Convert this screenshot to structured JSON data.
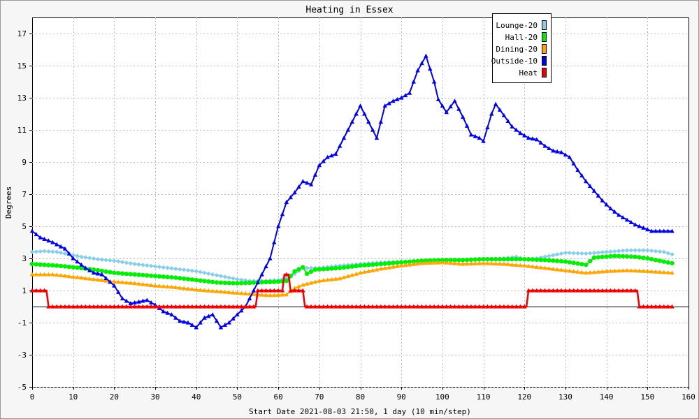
{
  "chart_data": {
    "type": "line",
    "title": "Heating in Essex",
    "xlabel": "Start Date 2021-08-03 21:50, 1 day (10 min/step)",
    "ylabel": "Degrees",
    "xlim": [
      0,
      160
    ],
    "ylim": [
      -5,
      18
    ],
    "x_ticks": [
      0,
      10,
      20,
      30,
      40,
      50,
      60,
      70,
      80,
      90,
      100,
      110,
      120,
      130,
      140,
      150,
      160
    ],
    "y_ticks": [
      -5,
      -3,
      -1,
      1,
      3,
      5,
      7,
      9,
      11,
      13,
      15,
      17
    ],
    "grid": true,
    "legend_position": "top-right",
    "series": [
      {
        "name": "Lounge-20",
        "color": "#87ceeb",
        "marker": "diamond",
        "points": [
          [
            0,
            3.4
          ],
          [
            3,
            3.45
          ],
          [
            6,
            3.4
          ],
          [
            9,
            3.25
          ],
          [
            12,
            3.1
          ],
          [
            16,
            2.95
          ],
          [
            20,
            2.85
          ],
          [
            25,
            2.65
          ],
          [
            30,
            2.5
          ],
          [
            35,
            2.35
          ],
          [
            40,
            2.2
          ],
          [
            45,
            1.95
          ],
          [
            50,
            1.7
          ],
          [
            53,
            1.6
          ],
          [
            56,
            1.6
          ],
          [
            60,
            1.65
          ],
          [
            63,
            1.85
          ],
          [
            66,
            2.4
          ],
          [
            70,
            2.4
          ],
          [
            75,
            2.55
          ],
          [
            80,
            2.65
          ],
          [
            85,
            2.75
          ],
          [
            90,
            2.8
          ],
          [
            95,
            2.85
          ],
          [
            100,
            2.85
          ],
          [
            105,
            2.9
          ],
          [
            110,
            2.95
          ],
          [
            115,
            3.0
          ],
          [
            118,
            3.1
          ],
          [
            120,
            2.95
          ],
          [
            123,
            3.0
          ],
          [
            126,
            3.15
          ],
          [
            130,
            3.35
          ],
          [
            135,
            3.3
          ],
          [
            140,
            3.4
          ],
          [
            145,
            3.5
          ],
          [
            150,
            3.5
          ],
          [
            154,
            3.4
          ],
          [
            156,
            3.25
          ]
        ]
      },
      {
        "name": "Hall-20",
        "color": "#00ee00",
        "marker": "circle",
        "points": [
          [
            0,
            2.65
          ],
          [
            3,
            2.6
          ],
          [
            6,
            2.55
          ],
          [
            10,
            2.45
          ],
          [
            15,
            2.3
          ],
          [
            20,
            2.1
          ],
          [
            25,
            2.0
          ],
          [
            30,
            1.9
          ],
          [
            35,
            1.8
          ],
          [
            40,
            1.65
          ],
          [
            45,
            1.5
          ],
          [
            50,
            1.45
          ],
          [
            55,
            1.5
          ],
          [
            60,
            1.55
          ],
          [
            62,
            1.6
          ],
          [
            64,
            2.2
          ],
          [
            66,
            2.45
          ],
          [
            67,
            2.05
          ],
          [
            69,
            2.3
          ],
          [
            75,
            2.4
          ],
          [
            80,
            2.55
          ],
          [
            85,
            2.65
          ],
          [
            90,
            2.75
          ],
          [
            95,
            2.85
          ],
          [
            100,
            2.9
          ],
          [
            105,
            2.9
          ],
          [
            110,
            2.95
          ],
          [
            115,
            2.95
          ],
          [
            120,
            2.95
          ],
          [
            125,
            2.9
          ],
          [
            130,
            2.8
          ],
          [
            135,
            2.6
          ],
          [
            137,
            3.05
          ],
          [
            142,
            3.15
          ],
          [
            147,
            3.1
          ],
          [
            150,
            3.0
          ],
          [
            153,
            2.85
          ],
          [
            156,
            2.7
          ]
        ]
      },
      {
        "name": "Dining-20",
        "color": "#ffa500",
        "marker": "triangle",
        "points": [
          [
            0,
            2.0
          ],
          [
            5,
            2.0
          ],
          [
            10,
            1.85
          ],
          [
            15,
            1.7
          ],
          [
            20,
            1.55
          ],
          [
            25,
            1.45
          ],
          [
            30,
            1.3
          ],
          [
            35,
            1.2
          ],
          [
            40,
            1.05
          ],
          [
            45,
            0.95
          ],
          [
            50,
            0.85
          ],
          [
            55,
            0.75
          ],
          [
            58,
            0.7
          ],
          [
            62,
            0.75
          ],
          [
            64,
            1.15
          ],
          [
            66,
            1.35
          ],
          [
            70,
            1.6
          ],
          [
            75,
            1.75
          ],
          [
            80,
            2.1
          ],
          [
            85,
            2.35
          ],
          [
            90,
            2.55
          ],
          [
            95,
            2.7
          ],
          [
            100,
            2.75
          ],
          [
            105,
            2.65
          ],
          [
            110,
            2.7
          ],
          [
            115,
            2.65
          ],
          [
            120,
            2.55
          ],
          [
            125,
            2.4
          ],
          [
            130,
            2.25
          ],
          [
            135,
            2.1
          ],
          [
            140,
            2.2
          ],
          [
            145,
            2.25
          ],
          [
            150,
            2.2
          ],
          [
            156,
            2.1
          ]
        ]
      },
      {
        "name": "Outside-10",
        "color": "#0000ee",
        "marker": "triangle",
        "points": [
          [
            0,
            4.7
          ],
          [
            2,
            4.3
          ],
          [
            5,
            4.0
          ],
          [
            8,
            3.6
          ],
          [
            10,
            3.0
          ],
          [
            13,
            2.4
          ],
          [
            15,
            2.1
          ],
          [
            17,
            2.0
          ],
          [
            20,
            1.3
          ],
          [
            22,
            0.5
          ],
          [
            24,
            0.2
          ],
          [
            26,
            0.3
          ],
          [
            28,
            0.4
          ],
          [
            30,
            0.1
          ],
          [
            32,
            -0.3
          ],
          [
            34,
            -0.5
          ],
          [
            36,
            -0.9
          ],
          [
            38,
            -1.0
          ],
          [
            40,
            -1.3
          ],
          [
            42,
            -0.7
          ],
          [
            44,
            -0.5
          ],
          [
            46,
            -1.3
          ],
          [
            48,
            -1.0
          ],
          [
            50,
            -0.5
          ],
          [
            52,
            0.0
          ],
          [
            54,
            1.0
          ],
          [
            56,
            2.0
          ],
          [
            58,
            3.0
          ],
          [
            60,
            5.0
          ],
          [
            62,
            6.5
          ],
          [
            64,
            7.1
          ],
          [
            66,
            7.8
          ],
          [
            68,
            7.6
          ],
          [
            70,
            8.8
          ],
          [
            72,
            9.3
          ],
          [
            74,
            9.5
          ],
          [
            76,
            10.5
          ],
          [
            78,
            11.5
          ],
          [
            80,
            12.5
          ],
          [
            82,
            11.5
          ],
          [
            84,
            10.5
          ],
          [
            86,
            12.5
          ],
          [
            88,
            12.8
          ],
          [
            90,
            13.0
          ],
          [
            92,
            13.3
          ],
          [
            94,
            14.7
          ],
          [
            96,
            15.6
          ],
          [
            98,
            14.0
          ],
          [
            99,
            12.9
          ],
          [
            101,
            12.1
          ],
          [
            103,
            12.8
          ],
          [
            105,
            11.8
          ],
          [
            107,
            10.7
          ],
          [
            109,
            10.5
          ],
          [
            110,
            10.3
          ],
          [
            112,
            12.0
          ],
          [
            113,
            12.6
          ],
          [
            115,
            11.9
          ],
          [
            117,
            11.2
          ],
          [
            119,
            10.8
          ],
          [
            121,
            10.5
          ],
          [
            123,
            10.4
          ],
          [
            125,
            10.0
          ],
          [
            127,
            9.7
          ],
          [
            129,
            9.6
          ],
          [
            131,
            9.3
          ],
          [
            133,
            8.5
          ],
          [
            135,
            7.8
          ],
          [
            137,
            7.2
          ],
          [
            139,
            6.6
          ],
          [
            141,
            6.1
          ],
          [
            143,
            5.7
          ],
          [
            145,
            5.4
          ],
          [
            147,
            5.1
          ],
          [
            149,
            4.9
          ],
          [
            151,
            4.7
          ],
          [
            156,
            4.7
          ]
        ]
      },
      {
        "name": "Heat",
        "color": "#ee0000",
        "marker": "triangle",
        "points": [
          [
            0,
            1.0
          ],
          [
            3.5,
            1.0
          ],
          [
            4,
            0.0
          ],
          [
            54.5,
            0.0
          ],
          [
            55,
            1.0
          ],
          [
            61,
            1.0
          ],
          [
            61.5,
            2.0
          ],
          [
            62.5,
            2.0
          ],
          [
            63,
            1.0
          ],
          [
            66,
            1.0
          ],
          [
            66.5,
            0.0
          ],
          [
            120.5,
            0.0
          ],
          [
            121,
            1.0
          ],
          [
            147.5,
            1.0
          ],
          [
            148,
            0.0
          ],
          [
            156,
            0.0
          ]
        ]
      }
    ]
  }
}
